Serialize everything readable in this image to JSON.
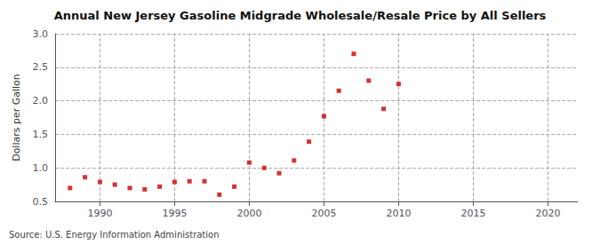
{
  "chart_data": {
    "type": "scatter",
    "title": "Annual New Jersey Gasoline Midgrade Wholesale/Resale Price by All Sellers",
    "ylabel": "Dollars per Gallon",
    "annotation": "Source: U.S. Energy Information Administration",
    "x": [
      1988,
      1989,
      1990,
      1991,
      1992,
      1993,
      1994,
      1995,
      1996,
      1997,
      1998,
      1999,
      2000,
      2001,
      2002,
      2003,
      2004,
      2005,
      2006,
      2007,
      2008,
      2009,
      2010
    ],
    "values": [
      0.7,
      0.86,
      0.79,
      0.75,
      0.7,
      0.68,
      0.72,
      0.79,
      0.8,
      0.8,
      0.6,
      0.72,
      1.08,
      1.0,
      0.92,
      1.11,
      1.39,
      1.77,
      2.15,
      2.7,
      2.3,
      1.88,
      2.25
    ],
    "color": "#cc0000",
    "marker": "square",
    "xlim": [
      1987,
      2022
    ],
    "ylim": [
      0.5,
      3.0
    ],
    "xticks": [
      1990,
      1995,
      2000,
      2005,
      2010,
      2015,
      2020
    ],
    "yticks": [
      0.5,
      {
        "value": 1.0,
        "label": "1.0"
      },
      1.5,
      {
        "value": 2.0,
        "label": "2.0"
      },
      2.5,
      {
        "value": 3.0,
        "label": "3.0"
      }
    ],
    "grid": true
  }
}
